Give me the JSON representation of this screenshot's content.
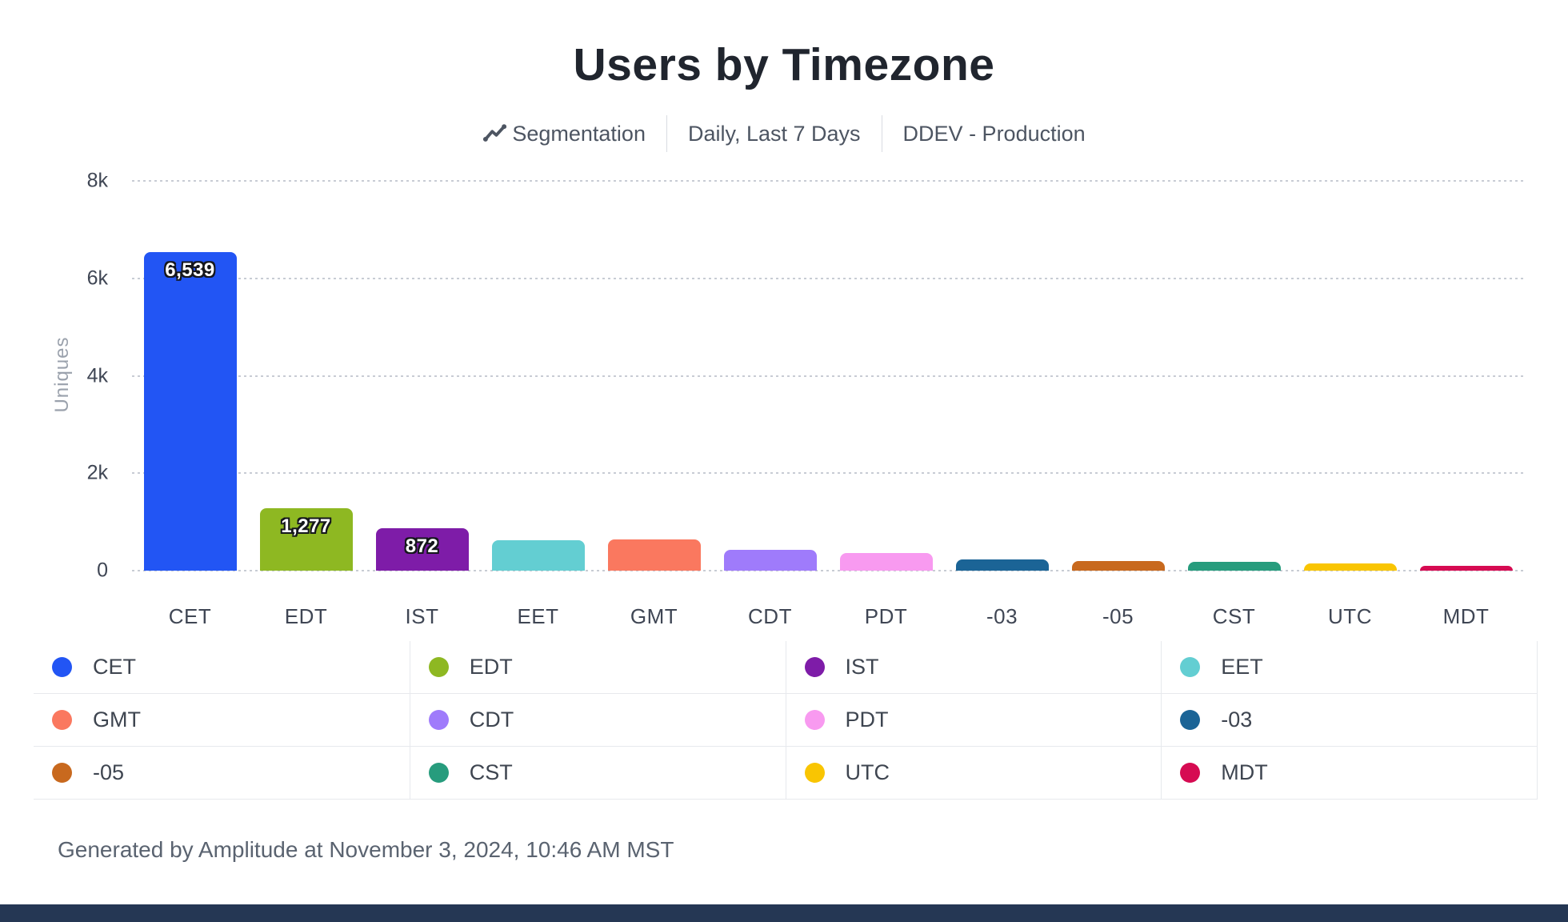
{
  "header": {
    "title": "Users by Timezone",
    "meta": {
      "segmentation_label": "Segmentation",
      "date_range": "Daily, Last 7 Days",
      "project": "DDEV - Production"
    }
  },
  "chart_data": {
    "type": "bar",
    "title": "Users by Timezone",
    "xlabel": "",
    "ylabel": "Uniques",
    "ylim": [
      0,
      8000
    ],
    "grid": "horizontal-dotted",
    "legend_position": "bottom-grid-4-columns",
    "yticks": [
      {
        "value": 0,
        "label": "0"
      },
      {
        "value": 2000,
        "label": "2k"
      },
      {
        "value": 4000,
        "label": "4k"
      },
      {
        "value": 6000,
        "label": "6k"
      },
      {
        "value": 8000,
        "label": "8k"
      }
    ],
    "categories": [
      "CET",
      "EDT",
      "IST",
      "EET",
      "GMT",
      "CDT",
      "PDT",
      "-03",
      "-05",
      "CST",
      "UTC",
      "MDT"
    ],
    "bars": [
      {
        "label": "CET",
        "value": 6539,
        "value_label": "6,539",
        "show_value_label": true,
        "color": "#2255f4"
      },
      {
        "label": "EDT",
        "value": 1277,
        "value_label": "1,277",
        "show_value_label": true,
        "color": "#8eb822"
      },
      {
        "label": "IST",
        "value": 872,
        "value_label": "872",
        "show_value_label": true,
        "color": "#7e1ca8"
      },
      {
        "label": "EET",
        "value": 620,
        "value_label": "",
        "show_value_label": false,
        "color": "#63ced2"
      },
      {
        "label": "GMT",
        "value": 645,
        "value_label": "",
        "show_value_label": false,
        "color": "#fa785f"
      },
      {
        "label": "CDT",
        "value": 420,
        "value_label": "",
        "show_value_label": false,
        "color": "#9f7bfb"
      },
      {
        "label": "PDT",
        "value": 355,
        "value_label": "",
        "show_value_label": false,
        "color": "#f89af0"
      },
      {
        "label": "-03",
        "value": 230,
        "value_label": "",
        "show_value_label": false,
        "color": "#1b6496"
      },
      {
        "label": "-05",
        "value": 195,
        "value_label": "",
        "show_value_label": false,
        "color": "#c8691e"
      },
      {
        "label": "CST",
        "value": 185,
        "value_label": "",
        "show_value_label": false,
        "color": "#279c7d"
      },
      {
        "label": "UTC",
        "value": 145,
        "value_label": "",
        "show_value_label": false,
        "color": "#f9c502"
      },
      {
        "label": "MDT",
        "value": 100,
        "value_label": "",
        "show_value_label": false,
        "color": "#d60b52"
      }
    ]
  },
  "legend": {
    "columns": 4,
    "rows": 3
  },
  "footer": {
    "text": "Generated by Amplitude at November 3, 2024, 10:46 AM MST"
  },
  "colors": {
    "grid": "#c8ccd4",
    "axis_text": "#3f4654",
    "axis_title_text": "#9aa1ac",
    "subtitle_text": "#4d5562",
    "title_text": "#20252e",
    "divider": "#e7e9ed",
    "footer_text": "#5a6370",
    "bottom_bar": "#253754"
  }
}
